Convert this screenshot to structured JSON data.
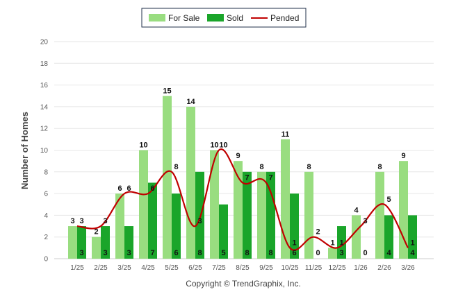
{
  "chart_data": {
    "type": "bar",
    "title": "",
    "xlabel": "",
    "ylabel": "Number of Homes",
    "ylim": [
      0,
      20
    ],
    "yticks": [
      0,
      2,
      4,
      6,
      8,
      10,
      12,
      14,
      16,
      18,
      20
    ],
    "grid": true,
    "legend_position": "top-center",
    "categories": [
      "1/25",
      "2/25",
      "3/25",
      "4/25",
      "5/25",
      "6/25",
      "7/25",
      "8/25",
      "9/25",
      "10/25",
      "11/25",
      "12/25",
      "1/26",
      "2/26",
      "3/26"
    ],
    "series": [
      {
        "name": "For Sale",
        "kind": "bar",
        "color": "#99dd80",
        "values": [
          3,
          2,
          6,
          10,
          15,
          14,
          10,
          9,
          8,
          11,
          8,
          1,
          4,
          8,
          9
        ]
      },
      {
        "name": "Sold",
        "kind": "bar",
        "color": "#1aa52a",
        "values": [
          3,
          3,
          3,
          7,
          6,
          8,
          5,
          8,
          8,
          6,
          0,
          3,
          0,
          4,
          4
        ]
      },
      {
        "name": "Pended",
        "kind": "line",
        "color": "#c00000",
        "values": [
          3,
          3,
          6,
          6,
          8,
          3,
          10,
          7,
          7,
          1,
          2,
          1,
          3,
          5,
          1
        ]
      }
    ],
    "footer": "Copyright © TrendGraphix, Inc."
  }
}
